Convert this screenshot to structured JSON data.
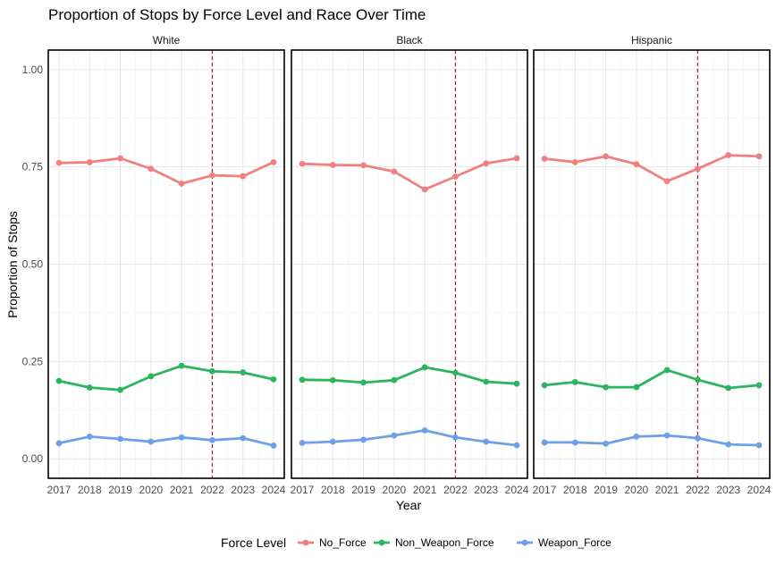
{
  "chart_data": {
    "type": "line",
    "title": "Proportion of Stops by Force Level and Race Over Time",
    "xlabel": "Year",
    "ylabel": "Proportion of Stops",
    "ylim": [
      -0.05,
      1.05
    ],
    "y_ticks": [
      "0.00",
      "0.25",
      "0.50",
      "0.75",
      "1.00"
    ],
    "x": [
      2017,
      2018,
      2019,
      2020,
      2021,
      2022,
      2023,
      2024
    ],
    "reference_line": {
      "x": 2022,
      "style": "dashed",
      "color": "#b2182b"
    },
    "legend": {
      "title": "Force Level",
      "position": "bottom"
    },
    "grid": true,
    "facets": [
      {
        "name": "White",
        "series": [
          {
            "name": "No_Force",
            "color": "#f08080",
            "values": [
              0.76,
              0.762,
              0.772,
              0.745,
              0.707,
              0.728,
              0.726,
              0.762
            ]
          },
          {
            "name": "Non_Weapon_Force",
            "color": "#2bb55e",
            "values": [
              0.2,
              0.183,
              0.177,
              0.212,
              0.239,
              0.225,
              0.222,
              0.204
            ]
          },
          {
            "name": "Weapon_Force",
            "color": "#6ea0ea",
            "values": [
              0.04,
              0.057,
              0.051,
              0.044,
              0.055,
              0.048,
              0.053,
              0.034
            ]
          }
        ]
      },
      {
        "name": "Black",
        "series": [
          {
            "name": "No_Force",
            "color": "#f08080",
            "values": [
              0.758,
              0.755,
              0.754,
              0.738,
              0.692,
              0.725,
              0.759,
              0.772
            ]
          },
          {
            "name": "Non_Weapon_Force",
            "color": "#2bb55e",
            "values": [
              0.203,
              0.202,
              0.196,
              0.202,
              0.235,
              0.221,
              0.198,
              0.193
            ]
          },
          {
            "name": "Weapon_Force",
            "color": "#6ea0ea",
            "values": [
              0.041,
              0.044,
              0.049,
              0.06,
              0.073,
              0.055,
              0.044,
              0.035
            ]
          }
        ]
      },
      {
        "name": "Hispanic",
        "series": [
          {
            "name": "No_Force",
            "color": "#f08080",
            "values": [
              0.771,
              0.762,
              0.777,
              0.757,
              0.713,
              0.745,
              0.78,
              0.777
            ]
          },
          {
            "name": "Non_Weapon_Force",
            "color": "#2bb55e",
            "values": [
              0.189,
              0.197,
              0.184,
              0.184,
              0.228,
              0.203,
              0.182,
              0.189
            ]
          },
          {
            "name": "Weapon_Force",
            "color": "#6ea0ea",
            "values": [
              0.042,
              0.042,
              0.039,
              0.057,
              0.06,
              0.053,
              0.037,
              0.035
            ]
          }
        ]
      }
    ]
  }
}
